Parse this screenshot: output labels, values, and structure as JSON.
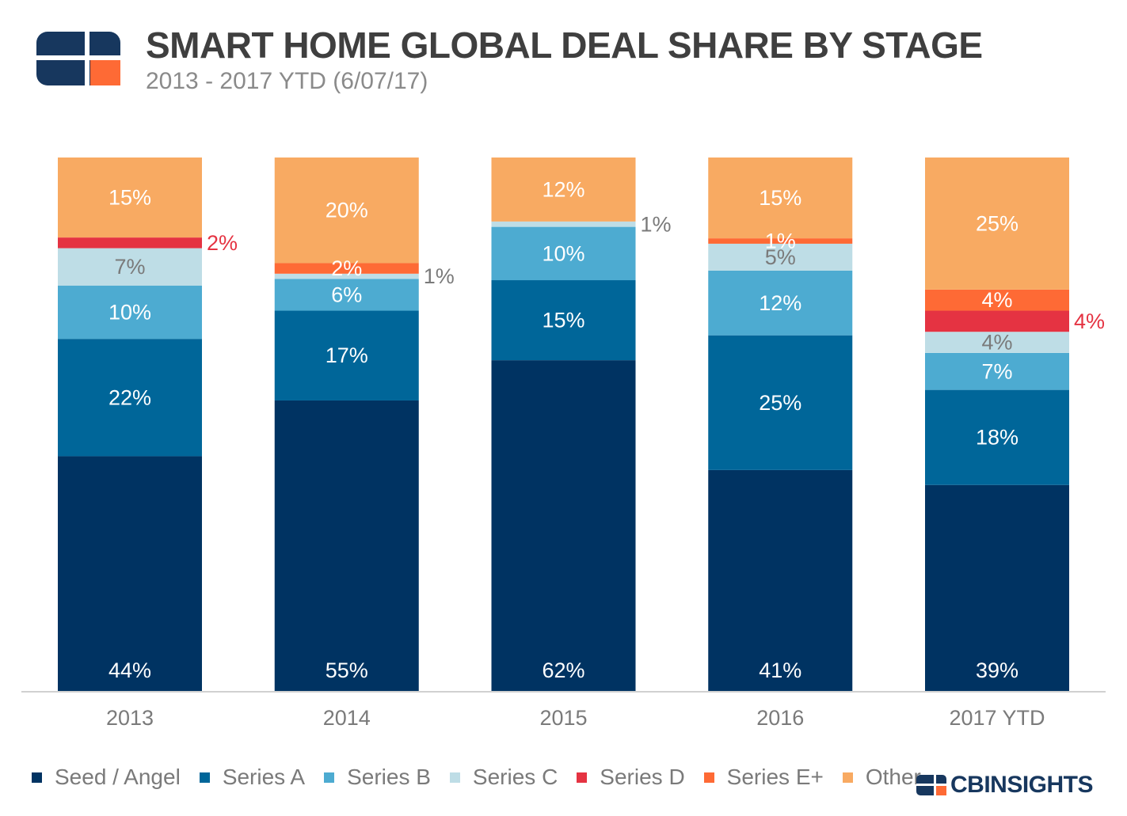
{
  "header": {
    "title": "SMART HOME GLOBAL DEAL SHARE BY STAGE",
    "subtitle": "2013 - 2017 YTD (6/07/17)"
  },
  "brand": {
    "text": "CBINSIGHTS",
    "logo_icon": "cb-insights-logo-icon"
  },
  "colors": {
    "Seed / Angel": "#003362",
    "Series A": "#006699",
    "Series B": "#4dabd1",
    "Series C": "#bedde6",
    "Series D": "#e53342",
    "Series E+": "#fe6a35",
    "Other": "#f8aa62",
    "axis": "#d0d0d0",
    "title": "#3f3f3f",
    "subtitle": "#8a8a8a"
  },
  "chart_data": {
    "type": "bar",
    "stacked": true,
    "normalized_percent": true,
    "categories": [
      "2013",
      "2014",
      "2015",
      "2016",
      "2017 YTD"
    ],
    "series": [
      {
        "name": "Seed / Angel",
        "values": [
          44,
          55,
          62,
          41,
          39
        ]
      },
      {
        "name": "Series A",
        "values": [
          22,
          17,
          15,
          25,
          18
        ]
      },
      {
        "name": "Series B",
        "values": [
          10,
          6,
          10,
          12,
          7
        ]
      },
      {
        "name": "Series C",
        "values": [
          7,
          1,
          1,
          5,
          4
        ]
      },
      {
        "name": "Series D",
        "values": [
          2,
          0,
          0,
          0,
          4
        ]
      },
      {
        "name": "Series E+",
        "values": [
          0,
          2,
          0,
          1,
          4
        ]
      },
      {
        "name": "Other",
        "values": [
          15,
          20,
          12,
          15,
          25
        ]
      }
    ],
    "data_labels": [
      [
        {
          "series": "Seed / Angel",
          "text": "44%"
        },
        {
          "series": "Series A",
          "text": "22%"
        },
        {
          "series": "Series B",
          "text": "10%"
        },
        {
          "series": "Series C",
          "text": "7%"
        },
        {
          "series": "Series D",
          "text": "2%",
          "outside": true
        },
        {
          "series": "Other",
          "text": "15%"
        }
      ],
      [
        {
          "series": "Seed / Angel",
          "text": "55%"
        },
        {
          "series": "Series A",
          "text": "17%"
        },
        {
          "series": "Series B",
          "text": "6%"
        },
        {
          "series": "Series C",
          "text": "1%",
          "outside": true
        },
        {
          "series": "Series E+",
          "text": "2%"
        },
        {
          "series": "Other",
          "text": "20%"
        }
      ],
      [
        {
          "series": "Seed / Angel",
          "text": "62%"
        },
        {
          "series": "Series A",
          "text": "15%"
        },
        {
          "series": "Series B",
          "text": "10%"
        },
        {
          "series": "Series C",
          "text": "1%",
          "outside": true
        },
        {
          "series": "Other",
          "text": "12%"
        }
      ],
      [
        {
          "series": "Seed / Angel",
          "text": "41%"
        },
        {
          "series": "Series A",
          "text": "25%"
        },
        {
          "series": "Series B",
          "text": "12%"
        },
        {
          "series": "Series C",
          "text": "5%"
        },
        {
          "series": "Series E+",
          "text": "1%"
        },
        {
          "series": "Other",
          "text": "15%"
        }
      ],
      [
        {
          "series": "Seed / Angel",
          "text": "39%"
        },
        {
          "series": "Series A",
          "text": "18%"
        },
        {
          "series": "Series B",
          "text": "7%"
        },
        {
          "series": "Series C",
          "text": "4%"
        },
        {
          "series": "Series D",
          "text": "4%",
          "outside": true
        },
        {
          "series": "Series E+",
          "text": "4%"
        },
        {
          "series": "Other",
          "text": "25%"
        }
      ]
    ],
    "ylim": [
      0,
      100
    ],
    "grid": false,
    "y_axis_shown": false,
    "legend_position": "bottom-left"
  }
}
